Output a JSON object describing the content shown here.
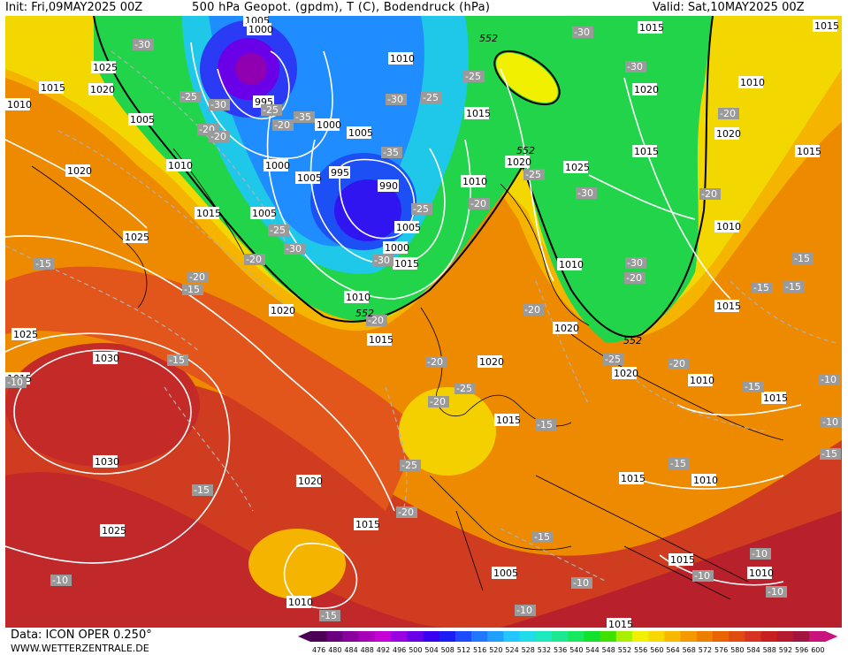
{
  "header": {
    "init": "Init: Fri,09MAY2025 00Z",
    "title": "500 hPa Geopot. (gpdm), T (C), Bodendruck (hPa)",
    "valid": "Valid: Sat,10MAY2025 00Z"
  },
  "footer": {
    "data_source": "Data: ICON OPER 0.250°",
    "website": "WWW.WETTERZENTRALE.DE"
  },
  "legend": {
    "values": [
      "476",
      "480",
      "484",
      "488",
      "492",
      "496",
      "500",
      "504",
      "508",
      "512",
      "516",
      "520",
      "524",
      "528",
      "532",
      "536",
      "540",
      "544",
      "548",
      "552",
      "556",
      "560",
      "564",
      "568",
      "572",
      "576",
      "580",
      "584",
      "588",
      "592",
      "596",
      "600"
    ],
    "colors": [
      "#4b0055",
      "#6a0080",
      "#8a009c",
      "#a800b8",
      "#c400d4",
      "#9b00e0",
      "#6a00e8",
      "#3a00f0",
      "#1c1cf5",
      "#1d4bff",
      "#1f78ff",
      "#1fa0ff",
      "#23c6ff",
      "#1fdce8",
      "#1ee8c0",
      "#1be890",
      "#17e860",
      "#14e030",
      "#40e000",
      "#a8f000",
      "#f0f000",
      "#f8d800",
      "#f8b800",
      "#f49a00",
      "#ee7e00",
      "#e86400",
      "#e04c10",
      "#d63420",
      "#c82020",
      "#b41a30",
      "#a01640",
      "#c8147c"
    ]
  },
  "map": {
    "pressure_labels": [
      "1005",
      "1000",
      "1025",
      "1015",
      "1020",
      "995",
      "1010",
      "1015",
      "1010",
      "1000",
      "1005",
      "1020",
      "1005",
      "995",
      "990",
      "1000",
      "1005",
      "1010",
      "1020",
      "1015",
      "1025",
      "1015",
      "1020",
      "1005",
      "1020",
      "1015",
      "1025",
      "1010",
      "1030",
      "1030",
      "1020",
      "1025",
      "1015",
      "1015",
      "1020",
      "1010",
      "1015",
      "1010",
      "1010",
      "1015",
      "1020",
      "1010",
      "1020",
      "1015",
      "1015",
      "1015",
      "1025",
      "1015",
      "1010",
      "1020",
      "1000",
      "1005",
      "1010",
      "1005",
      "1015",
      "1010",
      "1015",
      "1010",
      "1015",
      "1015"
    ],
    "temp_labels": [
      "-30",
      "-25",
      "-20",
      "-35",
      "-30",
      "-25",
      "-35",
      "-25",
      "-30",
      "-20",
      "-25",
      "-30",
      "-25",
      "-30",
      "-20",
      "-15",
      "-20",
      "-20",
      "-20",
      "-20",
      "-15",
      "-25",
      "-15",
      "-20",
      "-15",
      "-20",
      "-15",
      "-15",
      "-10",
      "-15",
      "-10",
      "-15",
      "-10",
      "-10",
      "-15",
      "-10",
      "-10",
      "-15",
      "-25",
      "-20",
      "-30",
      "-20",
      "-25",
      "-20",
      "-30",
      "-25",
      "-30",
      "-30",
      "-20",
      "-20",
      "-15",
      "-15",
      "-20",
      "-25",
      "-10",
      "-15",
      "-10",
      "-10"
    ],
    "geopotential_labels": [
      "552",
      "552",
      "552",
      "552"
    ]
  }
}
